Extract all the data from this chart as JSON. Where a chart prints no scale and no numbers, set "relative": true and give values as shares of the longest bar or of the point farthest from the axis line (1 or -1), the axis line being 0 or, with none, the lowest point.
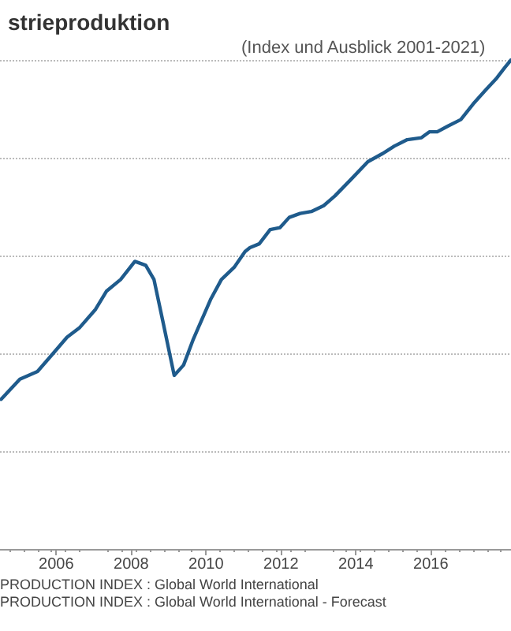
{
  "chart_data": {
    "type": "line",
    "title": "strieproduktion",
    "subtitle": "(Index und Ausblick 2001-2021)",
    "relative": true,
    "grid": "y",
    "marker": "none",
    "line_style": "solid",
    "xlim": [
      2004.5,
      2018.14
    ],
    "xticks": [
      2006,
      2008,
      2010,
      2012,
      2014,
      2016
    ],
    "series": [
      {
        "color": "#1f5b8c",
        "x": [
          2004.53,
          2005.03,
          2005.5,
          2005.92,
          2006.29,
          2006.63,
          2007.05,
          2007.34,
          2007.72,
          2008.1,
          2008.39,
          2008.61,
          2008.86,
          2009.15,
          2009.4,
          2009.66,
          2010.12,
          2010.41,
          2010.75,
          2011.04,
          2011.17,
          2011.42,
          2011.71,
          2011.97,
          2012.22,
          2012.51,
          2012.81,
          2013.14,
          2013.44,
          2013.86,
          2014.32,
          2014.7,
          2015.03,
          2015.37,
          2015.75,
          2015.96,
          2016.17,
          2016.46,
          2016.8,
          2017.13,
          2017.47,
          2017.76,
          2017.97,
          2018.14
        ],
        "values": [
          0.306,
          0.347,
          0.363,
          0.4,
          0.433,
          0.453,
          0.49,
          0.527,
          0.551,
          0.588,
          0.58,
          0.551,
          0.461,
          0.355,
          0.376,
          0.429,
          0.51,
          0.551,
          0.576,
          0.608,
          0.616,
          0.624,
          0.653,
          0.657,
          0.678,
          0.686,
          0.69,
          0.702,
          0.722,
          0.755,
          0.792,
          0.808,
          0.824,
          0.837,
          0.841,
          0.853,
          0.853,
          0.865,
          0.878,
          0.91,
          0.939,
          0.963,
          0.984,
          1
        ]
      }
    ],
    "annotations": [
      "PRODUCTION INDEX : Global World International",
      "PRODUCTION INDEX : Global World International - Forecast"
    ]
  }
}
